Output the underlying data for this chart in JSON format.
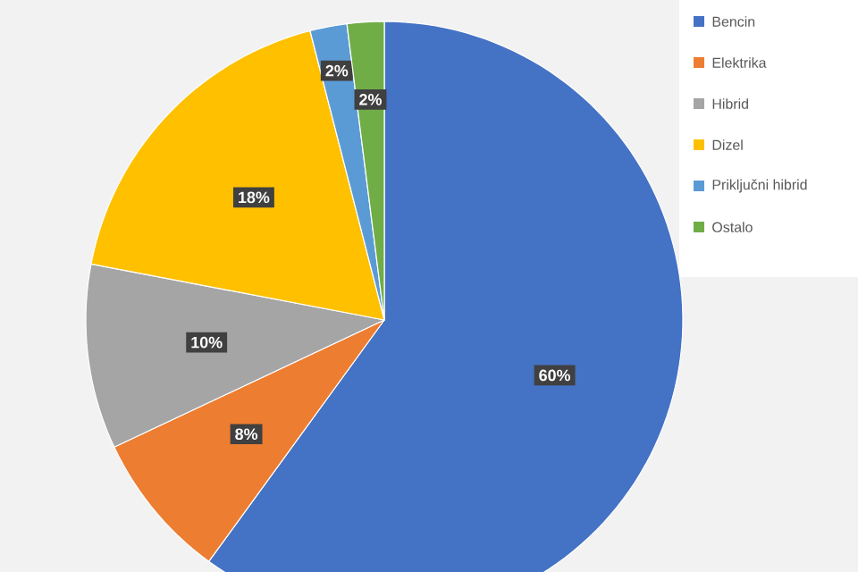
{
  "chart_data": {
    "type": "pie",
    "categories": [
      "Bencin",
      "Elektrika",
      "Hibrid",
      "Dizel",
      "Priključni hibrid",
      "Ostalo"
    ],
    "values": [
      60,
      8,
      10,
      18,
      2,
      2
    ],
    "value_labels": [
      "60%",
      "8%",
      "10%",
      "18%",
      "2%",
      "2%"
    ],
    "colors": [
      "#4472c4",
      "#ed7d31",
      "#a5a5a5",
      "#ffc000",
      "#5b9bd5",
      "#70ad47"
    ],
    "data_labels": true,
    "legend": "right"
  }
}
